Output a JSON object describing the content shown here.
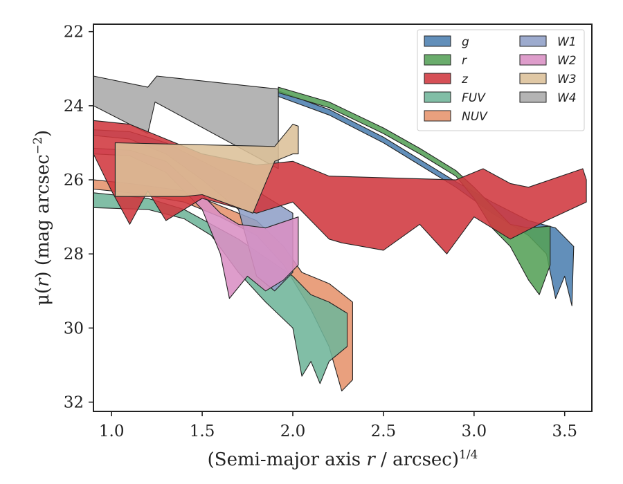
{
  "chart_data": {
    "type": "area",
    "title": "",
    "xlabel_main": "(Semi-major axis ",
    "xlabel_var": "r",
    "xlabel_rest": " / arcsec)",
    "xlabel_exp": "1/4",
    "ylabel_prefix": "μ(",
    "ylabel_var": "r",
    "ylabel_mid": ") (mag arcsec",
    "ylabel_exp": "−2",
    "ylabel_suffix": ")",
    "xlim": [
      0.9,
      3.65
    ],
    "ylim": [
      32.25,
      21.8
    ],
    "y_inverted": true,
    "xticks": [
      1.0,
      1.5,
      2.0,
      2.5,
      3.0,
      3.5
    ],
    "xtick_labels": [
      "1.0",
      "1.5",
      "2.0",
      "2.5",
      "3.0",
      "3.5"
    ],
    "yticks": [
      22,
      24,
      26,
      28,
      30,
      32
    ],
    "ytick_labels": [
      "22",
      "24",
      "26",
      "28",
      "30",
      "32"
    ],
    "grid": false,
    "legend_position": "top-right",
    "legend_columns": 2,
    "series": [
      {
        "name": "W4",
        "color": "#aaaaaa",
        "upper": [
          [
            0.9,
            23.2
          ],
          [
            1.2,
            23.5
          ],
          [
            1.25,
            23.2
          ],
          [
            1.92,
            23.55
          ]
        ],
        "lower": [
          [
            0.9,
            24.0
          ],
          [
            1.2,
            24.75
          ],
          [
            1.24,
            23.9
          ],
          [
            1.92,
            25.7
          ]
        ]
      },
      {
        "name": "g",
        "color": "#4c7fb0",
        "upper": [
          [
            1.92,
            23.6
          ],
          [
            2.2,
            24.1
          ],
          [
            2.5,
            24.85
          ],
          [
            2.7,
            25.45
          ],
          [
            2.9,
            26.05
          ],
          [
            3.1,
            26.6
          ],
          [
            3.3,
            27.1
          ],
          [
            3.45,
            27.3
          ],
          [
            3.55,
            27.8
          ]
        ],
        "lower": [
          [
            1.92,
            23.75
          ],
          [
            2.2,
            24.25
          ],
          [
            2.5,
            25.0
          ],
          [
            2.7,
            25.6
          ],
          [
            2.9,
            26.2
          ],
          [
            3.1,
            26.9
          ],
          [
            3.3,
            27.5
          ],
          [
            3.4,
            28.0
          ],
          [
            3.45,
            29.2
          ],
          [
            3.5,
            28.6
          ],
          [
            3.54,
            29.4
          ]
        ]
      },
      {
        "name": "r",
        "color": "#55a058",
        "upper": [
          [
            1.92,
            23.5
          ],
          [
            2.2,
            23.9
          ],
          [
            2.5,
            24.6
          ],
          [
            2.7,
            25.15
          ],
          [
            2.9,
            25.75
          ],
          [
            3.0,
            26.2
          ],
          [
            3.1,
            26.7
          ],
          [
            3.2,
            27.2
          ],
          [
            3.3,
            27.3
          ],
          [
            3.42,
            27.25
          ]
        ],
        "lower": [
          [
            1.92,
            23.65
          ],
          [
            2.2,
            24.05
          ],
          [
            2.5,
            24.75
          ],
          [
            2.7,
            25.3
          ],
          [
            2.9,
            25.9
          ],
          [
            3.0,
            26.5
          ],
          [
            3.1,
            27.3
          ],
          [
            3.2,
            27.8
          ],
          [
            3.3,
            28.7
          ],
          [
            3.36,
            29.1
          ],
          [
            3.42,
            28.3
          ]
        ]
      },
      {
        "name": "NUV",
        "color": "#e6936c",
        "upper": [
          [
            0.9,
            26.0
          ],
          [
            1.1,
            26.1
          ],
          [
            1.4,
            26.3
          ],
          [
            1.6,
            26.7
          ],
          [
            1.8,
            27.1
          ],
          [
            1.95,
            27.8
          ],
          [
            2.05,
            28.5
          ],
          [
            2.2,
            28.8
          ],
          [
            2.33,
            29.3
          ]
        ],
        "lower": [
          [
            0.9,
            26.25
          ],
          [
            1.1,
            26.35
          ],
          [
            1.4,
            26.6
          ],
          [
            1.6,
            27.0
          ],
          [
            1.8,
            27.5
          ],
          [
            1.95,
            28.3
          ],
          [
            2.1,
            29.5
          ],
          [
            2.2,
            30.5
          ],
          [
            2.27,
            31.7
          ],
          [
            2.33,
            31.4
          ]
        ]
      },
      {
        "name": "FUV",
        "color": "#6fb59a",
        "upper": [
          [
            0.9,
            26.35
          ],
          [
            1.2,
            26.5
          ],
          [
            1.4,
            26.8
          ],
          [
            1.55,
            27.2
          ],
          [
            1.7,
            27.6
          ],
          [
            1.85,
            28.1
          ],
          [
            2.0,
            28.6
          ],
          [
            2.1,
            29.1
          ],
          [
            2.2,
            29.3
          ],
          [
            2.3,
            29.6
          ]
        ],
        "lower": [
          [
            0.9,
            26.75
          ],
          [
            1.2,
            26.8
          ],
          [
            1.4,
            27.05
          ],
          [
            1.55,
            27.5
          ],
          [
            1.7,
            28.5
          ],
          [
            1.85,
            29.3
          ],
          [
            2.0,
            30.0
          ],
          [
            2.05,
            31.3
          ],
          [
            2.1,
            30.9
          ],
          [
            2.15,
            31.5
          ],
          [
            2.2,
            30.9
          ],
          [
            2.3,
            30.5
          ]
        ]
      },
      {
        "name": "W1",
        "color": "#8f9fc7",
        "upper": [
          [
            0.9,
            24.65
          ],
          [
            1.1,
            24.7
          ],
          [
            1.3,
            25.0
          ],
          [
            1.5,
            25.5
          ],
          [
            1.7,
            26.0
          ],
          [
            1.9,
            26.6
          ],
          [
            2.0,
            26.9
          ]
        ],
        "lower": [
          [
            0.9,
            24.8
          ],
          [
            1.1,
            24.9
          ],
          [
            1.3,
            25.3
          ],
          [
            1.5,
            26.0
          ],
          [
            1.7,
            26.8
          ],
          [
            1.8,
            28.6
          ],
          [
            1.9,
            29.0
          ],
          [
            2.0,
            28.5
          ]
        ]
      },
      {
        "name": "W2",
        "color": "#d98fc4",
        "upper": [
          [
            0.9,
            25.15
          ],
          [
            1.1,
            25.2
          ],
          [
            1.3,
            25.5
          ],
          [
            1.5,
            26.4
          ],
          [
            1.6,
            26.9
          ],
          [
            1.7,
            27.2
          ],
          [
            1.85,
            27.3
          ],
          [
            2.03,
            27.0
          ]
        ],
        "lower": [
          [
            0.9,
            25.3
          ],
          [
            1.1,
            25.35
          ],
          [
            1.3,
            25.8
          ],
          [
            1.5,
            26.8
          ],
          [
            1.6,
            28.0
          ],
          [
            1.65,
            29.2
          ],
          [
            1.75,
            28.6
          ],
          [
            1.85,
            29.0
          ],
          [
            1.95,
            28.7
          ],
          [
            2.03,
            28.3
          ]
        ]
      },
      {
        "name": "z",
        "color": "#d0383f",
        "upper": [
          [
            0.9,
            24.4
          ],
          [
            1.1,
            24.5
          ],
          [
            1.3,
            24.9
          ],
          [
            1.5,
            25.3
          ],
          [
            1.8,
            25.6
          ],
          [
            2.0,
            25.5
          ],
          [
            2.2,
            25.9
          ],
          [
            2.9,
            26.0
          ],
          [
            3.05,
            25.7
          ],
          [
            3.2,
            26.1
          ],
          [
            3.3,
            26.2
          ],
          [
            3.6,
            25.7
          ],
          [
            3.62,
            26.0
          ]
        ],
        "lower": [
          [
            0.9,
            25.3
          ],
          [
            1.0,
            26.3
          ],
          [
            1.1,
            27.2
          ],
          [
            1.2,
            26.3
          ],
          [
            1.3,
            27.1
          ],
          [
            1.5,
            26.5
          ],
          [
            1.8,
            26.9
          ],
          [
            2.0,
            26.6
          ],
          [
            2.2,
            27.6
          ],
          [
            2.27,
            27.7
          ],
          [
            2.5,
            27.9
          ],
          [
            2.7,
            27.2
          ],
          [
            2.85,
            28.0
          ],
          [
            3.0,
            27.0
          ],
          [
            3.2,
            27.6
          ],
          [
            3.4,
            27.1
          ],
          [
            3.62,
            26.6
          ]
        ]
      },
      {
        "name": "W3",
        "color": "#dcc099",
        "upper": [
          [
            1.02,
            25.0
          ],
          [
            1.9,
            25.1
          ],
          [
            2.0,
            24.5
          ],
          [
            2.03,
            24.55
          ]
        ],
        "lower": [
          [
            1.02,
            26.45
          ],
          [
            1.4,
            26.45
          ],
          [
            1.5,
            26.4
          ],
          [
            1.78,
            26.9
          ],
          [
            1.9,
            25.5
          ],
          [
            2.0,
            25.3
          ],
          [
            2.03,
            25.3
          ]
        ]
      }
    ],
    "legend_order": [
      "g",
      "r",
      "z",
      "FUV",
      "NUV",
      "W1",
      "W2",
      "W3",
      "W4"
    ]
  }
}
